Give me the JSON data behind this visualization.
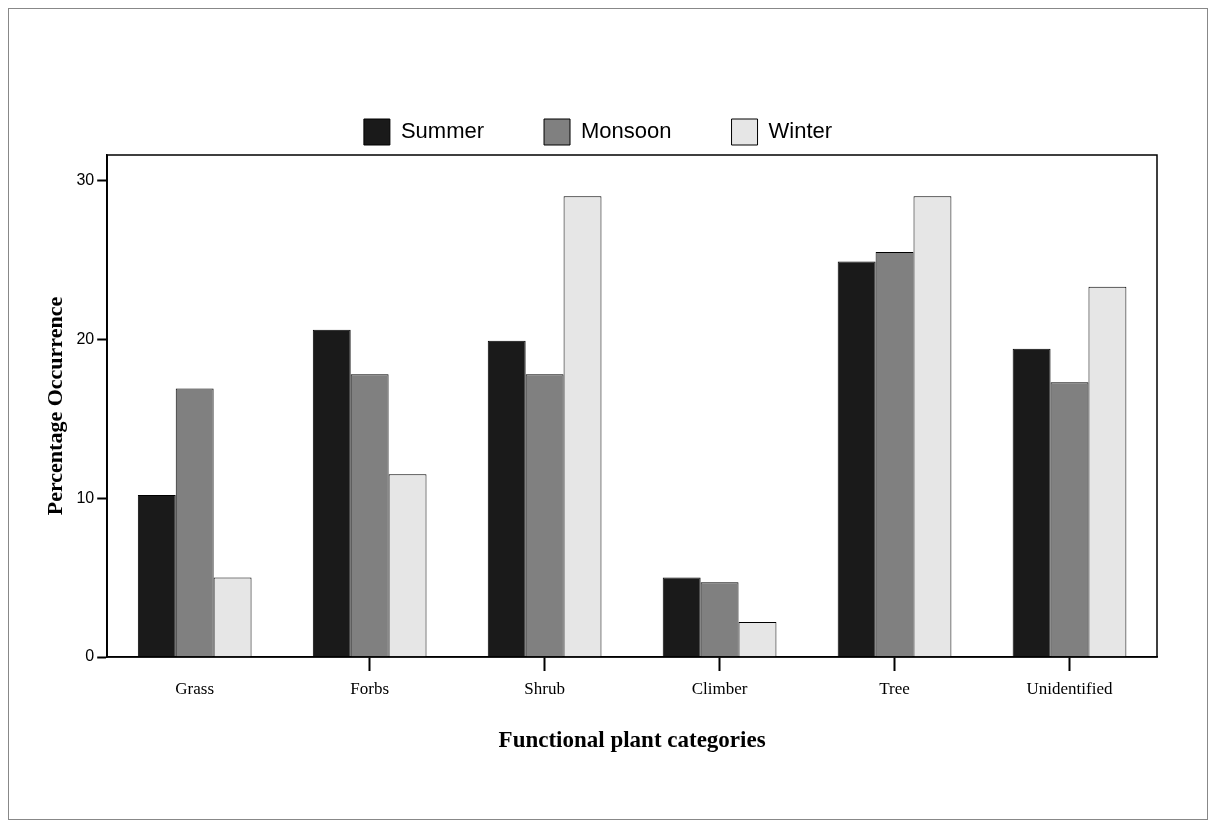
{
  "chart_data": {
    "type": "bar",
    "xlabel": "Functional plant categories",
    "ylabel": "Percentage Occurrence",
    "categories": [
      "Grass",
      "Forbs",
      "Shrub",
      "Climber",
      "Tree",
      "Unidentified"
    ],
    "series": [
      {
        "name": "Summer",
        "color": "#1a1a1a",
        "values": [
          10.2,
          20.6,
          19.9,
          5.0,
          24.9,
          19.4
        ]
      },
      {
        "name": "Monsoon",
        "color": "#808080",
        "values": [
          16.9,
          17.8,
          17.8,
          4.7,
          25.5,
          17.3
        ]
      },
      {
        "name": "Winter",
        "color": "#e6e6e6",
        "values": [
          5.0,
          11.5,
          29.0,
          2.2,
          29.0,
          23.3
        ]
      }
    ],
    "ylim": [
      0,
      31.6
    ],
    "yticks": [
      0,
      10,
      20,
      30
    ],
    "grid": false,
    "legend": "top"
  }
}
